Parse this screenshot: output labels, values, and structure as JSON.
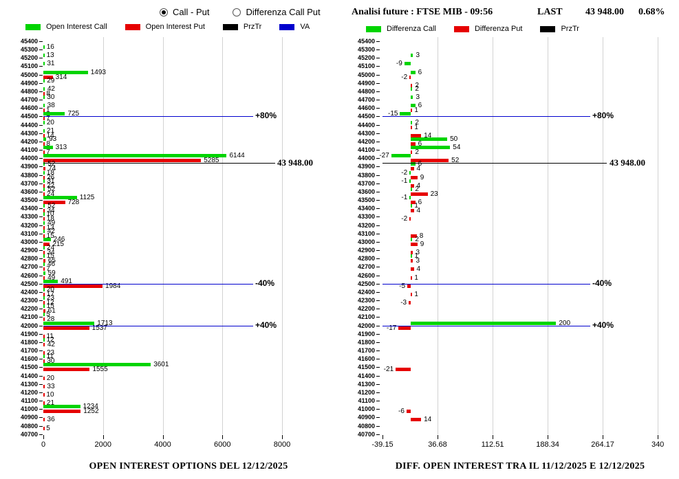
{
  "header": {
    "radios": [
      {
        "label": "Call - Put",
        "selected": true
      },
      {
        "label": "Differenza Call Put",
        "selected": false
      }
    ],
    "title": "Analisi future : FTSE MIB - 09:56",
    "last_label": "LAST",
    "last_value": "43 948.00",
    "last_change_pct": "0.68%"
  },
  "colors": {
    "call_green": "#00d400",
    "put_red": "#e60000",
    "prztr_black": "#000000",
    "va_blue": "#0000cd",
    "grid_gray": "#d2d2d2"
  },
  "chart_data": [
    {
      "type": "bar",
      "orientation": "horizontal",
      "title": "OPEN INTEREST OPTIONS DEL 12/12/2025",
      "legend": [
        {
          "label": "Open Interest Call",
          "color_key": "call_green"
        },
        {
          "label": "Open Interest Put",
          "color_key": "put_red"
        },
        {
          "label": "PrzTr",
          "color_key": "prztr_black"
        },
        {
          "label": "VA",
          "color_key": "va_blue"
        }
      ],
      "x_axis": {
        "ticks": [
          {
            "v": 0,
            "label": "0"
          },
          {
            "v": 2000,
            "label": "2000"
          },
          {
            "v": 4000,
            "label": "4000"
          },
          {
            "v": 6000,
            "label": "6000"
          },
          {
            "v": 8000,
            "label": "8000"
          }
        ],
        "grid_ticks": [
          2000,
          4000,
          6000,
          8000
        ],
        "xlim": [
          0,
          9700
        ]
      },
      "rows_format": "[strike, open_interest_call, open_interest_put]",
      "rows": [
        [
          45400,
          null,
          null
        ],
        [
          45300,
          16,
          null
        ],
        [
          45200,
          13,
          null
        ],
        [
          45100,
          31,
          null
        ],
        [
          45000,
          1493,
          314
        ],
        [
          44900,
          29,
          null
        ],
        [
          44800,
          42,
          8
        ],
        [
          44700,
          30,
          null
        ],
        [
          44600,
          38,
          1
        ],
        [
          44500,
          725,
          7
        ],
        [
          44400,
          20,
          null
        ],
        [
          44300,
          21,
          14
        ],
        [
          44200,
          93,
          8
        ],
        [
          44100,
          313,
          7
        ],
        [
          44000,
          6144,
          5285
        ],
        [
          43900,
          52,
          74
        ],
        [
          43800,
          18,
          26
        ],
        [
          43700,
          31,
          22
        ],
        [
          43600,
          52,
          24
        ],
        [
          43500,
          1125,
          728
        ],
        [
          43400,
          52,
          34
        ],
        [
          43300,
          10,
          18
        ],
        [
          43200,
          49,
          13
        ],
        [
          43100,
          42,
          15
        ],
        [
          43000,
          246,
          215
        ],
        [
          42900,
          24,
          34
        ],
        [
          42800,
          15,
          65
        ],
        [
          42700,
          46,
          7
        ],
        [
          42600,
          59,
          49
        ],
        [
          42500,
          491,
          1984
        ],
        [
          42400,
          20,
          17
        ],
        [
          42300,
          23,
          12
        ],
        [
          42200,
          15,
          61
        ],
        [
          42100,
          5,
          28
        ],
        [
          42000,
          1713,
          1537
        ],
        [
          41900,
          null,
          11
        ],
        [
          41800,
          12,
          42
        ],
        [
          41700,
          null,
          23
        ],
        [
          41600,
          11,
          30
        ],
        [
          41500,
          3601,
          1555
        ],
        [
          41400,
          null,
          20
        ],
        [
          41300,
          null,
          33
        ],
        [
          41200,
          null,
          10
        ],
        [
          41100,
          null,
          21
        ],
        [
          41000,
          1234,
          1252
        ],
        [
          40900,
          null,
          36
        ],
        [
          40800,
          null,
          5
        ],
        [
          40700,
          null,
          null
        ]
      ],
      "lines": [
        {
          "at": 44500,
          "label": "+80%",
          "type": "va"
        },
        {
          "at": 43948,
          "label": "43 948.00",
          "type": "prztr"
        },
        {
          "at": 42500,
          "label": "-40%",
          "type": "va"
        },
        {
          "at": 42000,
          "label": "+40%",
          "type": "va"
        }
      ]
    },
    {
      "type": "bar",
      "orientation": "horizontal",
      "title": "DIFF. OPEN INTEREST TRA IL 11/12/2025 E 12/12/2025",
      "legend": [
        {
          "label": "Differenza Call",
          "color_key": "call_green"
        },
        {
          "label": "Differenza Put",
          "color_key": "put_red"
        },
        {
          "label": "PrzTr",
          "color_key": "prztr_black"
        }
      ],
      "x_axis": {
        "ticks": [
          {
            "v": -39.15,
            "label": "-39.15"
          },
          {
            "v": 36.68,
            "label": "36.68"
          },
          {
            "v": 112.51,
            "label": "112.51"
          },
          {
            "v": 188.34,
            "label": "188.34"
          },
          {
            "v": 264.17,
            "label": "264.17"
          },
          {
            "v": 340,
            "label": "340"
          }
        ],
        "grid_ticks": [
          36.68,
          112.51,
          188.34,
          264.17,
          340
        ],
        "xlim": [
          -39.15,
          340
        ]
      },
      "rows_format": "[strike, differenza_call, differenza_put]",
      "rows": [
        [
          45400,
          null,
          null
        ],
        [
          45300,
          null,
          null
        ],
        [
          45200,
          3,
          null
        ],
        [
          45100,
          -9,
          null
        ],
        [
          45000,
          6,
          -2
        ],
        [
          44900,
          null,
          2
        ],
        [
          44800,
          2,
          null
        ],
        [
          44700,
          3,
          null
        ],
        [
          44600,
          6,
          1
        ],
        [
          44500,
          -15,
          null
        ],
        [
          44400,
          2,
          1
        ],
        [
          44300,
          null,
          14
        ],
        [
          44200,
          50,
          6
        ],
        [
          44100,
          54,
          2
        ],
        [
          44000,
          -27,
          52
        ],
        [
          43900,
          6,
          4
        ],
        [
          43800,
          -2,
          9
        ],
        [
          43700,
          -1,
          4
        ],
        [
          43600,
          2,
          23
        ],
        [
          43500,
          -1,
          6
        ],
        [
          43400,
          1,
          4
        ],
        [
          43300,
          null,
          -2
        ],
        [
          43200,
          null,
          null
        ],
        [
          43100,
          null,
          8
        ],
        [
          43000,
          2,
          9
        ],
        [
          42900,
          null,
          3
        ],
        [
          42800,
          1,
          3
        ],
        [
          42700,
          null,
          4
        ],
        [
          42600,
          null,
          1
        ],
        [
          42500,
          null,
          -5
        ],
        [
          42400,
          null,
          1
        ],
        [
          42300,
          null,
          -3
        ],
        [
          42200,
          null,
          null
        ],
        [
          42100,
          null,
          null
        ],
        [
          42000,
          200,
          -17
        ],
        [
          41900,
          null,
          null
        ],
        [
          41800,
          null,
          null
        ],
        [
          41700,
          null,
          null
        ],
        [
          41600,
          null,
          null
        ],
        [
          41500,
          null,
          -21
        ],
        [
          41400,
          null,
          null
        ],
        [
          41300,
          null,
          null
        ],
        [
          41200,
          null,
          null
        ],
        [
          41100,
          null,
          null
        ],
        [
          41000,
          null,
          -6
        ],
        [
          40900,
          null,
          14
        ],
        [
          40800,
          null,
          null
        ],
        [
          40700,
          null,
          null
        ]
      ],
      "lines": [
        {
          "at": 44500,
          "label": "+80%",
          "type": "va"
        },
        {
          "at": 43948,
          "label": "43 948.00",
          "type": "prztr"
        },
        {
          "at": 42500,
          "label": "-40%",
          "type": "va"
        },
        {
          "at": 42000,
          "label": "+40%",
          "type": "va"
        }
      ]
    }
  ]
}
